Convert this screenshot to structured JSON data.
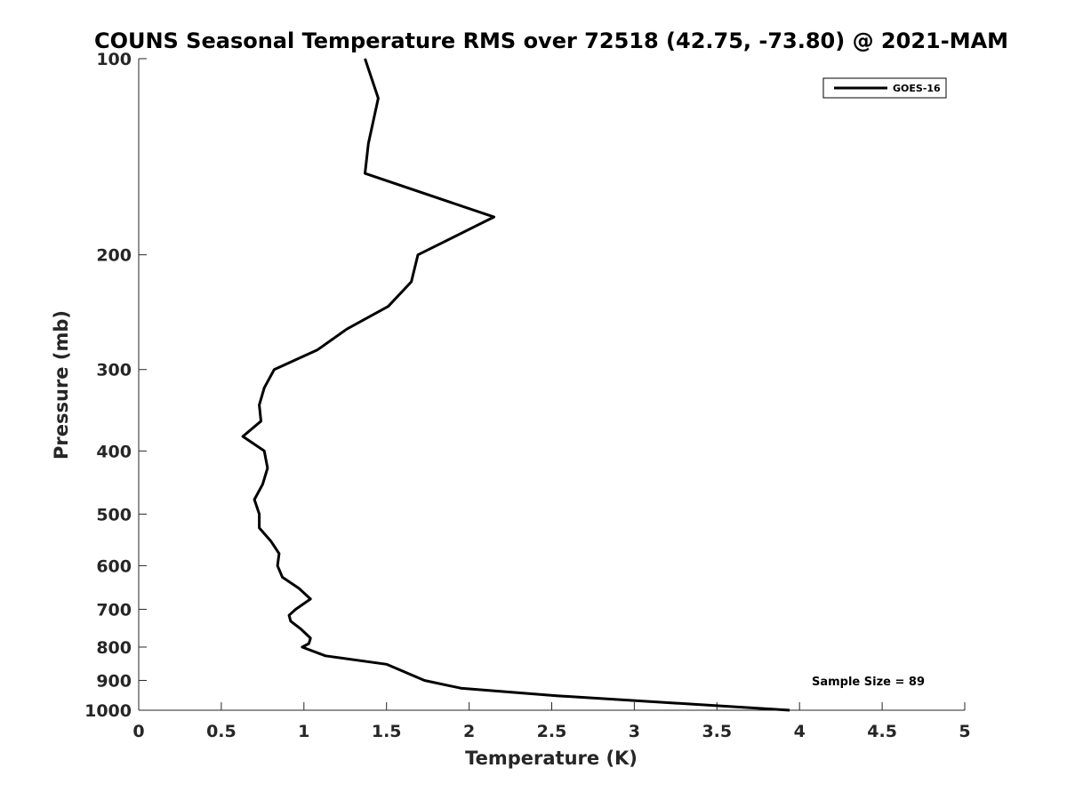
{
  "chart_data": {
    "type": "line",
    "title": "COUNS Seasonal Temperature RMS over 72518 (42.75, -73.80) @ 2021-MAM",
    "xlabel": "Temperature (K)",
    "ylabel": "Pressure (mb)",
    "xlim": [
      0,
      5
    ],
    "ylim": [
      100,
      1000
    ],
    "y_scale": "log",
    "y_reversed": true,
    "x_ticks": [
      "0",
      "0.5",
      "1",
      "1.5",
      "2",
      "2.5",
      "3",
      "3.5",
      "4",
      "4.5",
      "5"
    ],
    "y_ticks": [
      "100",
      "200",
      "300",
      "400",
      "500",
      "600",
      "700",
      "800",
      "900",
      "1000"
    ],
    "grid": false,
    "legend_position": "top-right",
    "series": [
      {
        "name": "GOES-16",
        "color": "#000000",
        "x": [
          1.37,
          1.45,
          1.39,
          1.37,
          2.15,
          1.69,
          1.65,
          1.51,
          1.26,
          1.08,
          0.82,
          0.76,
          0.73,
          0.74,
          0.63,
          0.76,
          0.78,
          0.75,
          0.7,
          0.73,
          0.73,
          0.8,
          0.85,
          0.84,
          0.87,
          0.97,
          1.04,
          0.95,
          0.91,
          0.92,
          0.98,
          1.04,
          1.03,
          0.99,
          1.13,
          1.5,
          1.73,
          1.95,
          2.53,
          3.94
        ],
        "y": [
          100,
          115,
          135,
          150,
          175,
          200,
          220,
          240,
          260,
          280,
          300,
          320,
          340,
          360,
          380,
          400,
          425,
          450,
          475,
          500,
          525,
          550,
          575,
          600,
          625,
          650,
          675,
          700,
          715,
          730,
          750,
          775,
          790,
          800,
          825,
          850,
          900,
          925,
          950,
          1000
        ]
      }
    ],
    "annotations": [
      "Sample Size = 89"
    ]
  }
}
